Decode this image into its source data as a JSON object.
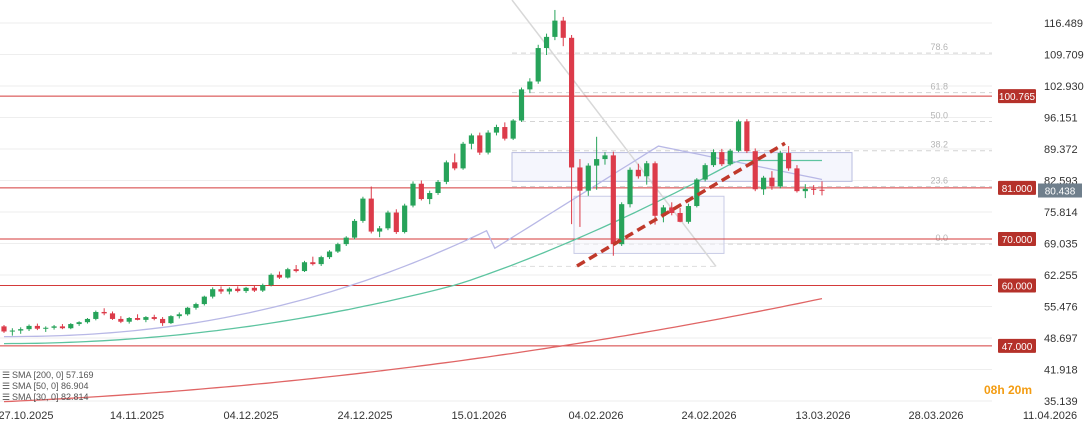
{
  "chart_data": {
    "type": "candlestick",
    "x_labels": [
      "27.10.2025",
      "14.11.2025",
      "04.12.2025",
      "24.12.2025",
      "15.01.2026",
      "04.02.2026",
      "24.02.2026",
      "13.03.2026",
      "28.03.2026",
      "11.04.2026"
    ],
    "y_labels": [
      "116.489",
      "109.709",
      "102.930",
      "96.151",
      "89.372",
      "82.593",
      "75.814",
      "69.035",
      "62.255",
      "55.476",
      "48.697",
      "41.918",
      "35.139"
    ],
    "ylim": [
      35.139,
      121.5
    ],
    "horizontal_levels": [
      100.765,
      81.0,
      70.0,
      60.0,
      47.0
    ],
    "level_tags": [
      "100.765",
      "81.000",
      "70.000",
      "60.000",
      "47.000"
    ],
    "current_price": "80.438",
    "fib_levels": [
      {
        "label": "78.6",
        "value": 110.0
      },
      {
        "label": "61.8",
        "value": 101.5
      },
      {
        "label": "50.0",
        "value": 95.3
      },
      {
        "label": "38.2",
        "value": 89.0
      },
      {
        "label": "23.6",
        "value": 81.3
      },
      {
        "label": "0.0",
        "value": 68.9
      }
    ],
    "candles": [
      [
        51.2,
        51.5,
        49.8,
        50.1
      ],
      [
        50.1,
        50.8,
        49.2,
        50.3
      ],
      [
        50.3,
        51.0,
        49.6,
        50.6
      ],
      [
        50.6,
        51.6,
        50.2,
        51.3
      ],
      [
        51.3,
        51.8,
        50.4,
        50.7
      ],
      [
        50.7,
        51.2,
        50.0,
        50.9
      ],
      [
        50.9,
        51.5,
        50.5,
        51.2
      ],
      [
        51.2,
        51.7,
        50.6,
        50.8
      ],
      [
        50.8,
        51.9,
        50.6,
        51.7
      ],
      [
        51.7,
        52.3,
        51.3,
        52.1
      ],
      [
        52.1,
        53.0,
        51.8,
        52.8
      ],
      [
        52.8,
        54.6,
        52.5,
        54.3
      ],
      [
        54.3,
        55.1,
        53.6,
        54.0
      ],
      [
        54.0,
        54.4,
        52.6,
        52.8
      ],
      [
        52.8,
        53.4,
        51.9,
        52.2
      ],
      [
        52.2,
        53.2,
        51.8,
        53.0
      ],
      [
        53.0,
        53.8,
        52.5,
        52.6
      ],
      [
        52.6,
        53.4,
        52.1,
        53.2
      ],
      [
        53.2,
        53.7,
        52.5,
        52.8
      ],
      [
        52.8,
        53.2,
        51.3,
        51.9
      ],
      [
        51.9,
        53.6,
        51.7,
        53.4
      ],
      [
        53.4,
        54.2,
        52.9,
        53.8
      ],
      [
        53.8,
        55.4,
        53.5,
        55.2
      ],
      [
        55.2,
        56.3,
        54.8,
        56.0
      ],
      [
        56.0,
        57.8,
        55.7,
        57.6
      ],
      [
        57.6,
        59.6,
        57.2,
        59.2
      ],
      [
        59.2,
        59.8,
        58.2,
        58.7
      ],
      [
        58.7,
        59.6,
        58.1,
        59.3
      ],
      [
        59.3,
        59.8,
        58.5,
        58.8
      ],
      [
        58.8,
        59.7,
        58.4,
        59.5
      ],
      [
        59.5,
        59.9,
        58.6,
        58.9
      ],
      [
        58.9,
        60.4,
        58.6,
        60.1
      ],
      [
        60.1,
        62.6,
        59.8,
        62.3
      ],
      [
        62.3,
        63.0,
        61.4,
        61.7
      ],
      [
        61.7,
        63.8,
        61.5,
        63.5
      ],
      [
        63.5,
        64.4,
        62.8,
        63.1
      ],
      [
        63.1,
        65.3,
        62.9,
        65.0
      ],
      [
        65.0,
        66.2,
        64.3,
        64.6
      ],
      [
        64.6,
        66.4,
        64.2,
        66.1
      ],
      [
        66.1,
        67.6,
        65.7,
        67.3
      ],
      [
        67.3,
        69.2,
        67.0,
        68.9
      ],
      [
        68.9,
        70.6,
        68.5,
        70.3
      ],
      [
        70.3,
        74.3,
        69.9,
        73.9
      ],
      [
        73.9,
        79.1,
        73.5,
        78.7
      ],
      [
        78.7,
        81.3,
        71.2,
        71.6
      ],
      [
        71.6,
        72.8,
        70.4,
        72.3
      ],
      [
        72.3,
        76.1,
        71.9,
        75.7
      ],
      [
        75.7,
        76.4,
        71.1,
        71.5
      ],
      [
        71.5,
        77.6,
        71.2,
        77.2
      ],
      [
        77.2,
        82.4,
        76.8,
        81.9
      ],
      [
        81.9,
        82.6,
        78.3,
        78.6
      ],
      [
        78.6,
        80.4,
        77.5,
        79.9
      ],
      [
        79.9,
        82.7,
        79.5,
        82.3
      ],
      [
        82.3,
        86.9,
        81.8,
        86.5
      ],
      [
        86.5,
        88.4,
        84.8,
        85.2
      ],
      [
        85.2,
        90.9,
        84.9,
        90.5
      ],
      [
        90.5,
        92.7,
        89.3,
        92.3
      ],
      [
        92.3,
        92.9,
        88.1,
        88.6
      ],
      [
        88.6,
        93.4,
        88.2,
        92.9
      ],
      [
        92.9,
        94.6,
        92.3,
        94.1
      ],
      [
        94.1,
        95.1,
        91.2,
        91.6
      ],
      [
        91.6,
        95.8,
        91.3,
        95.5
      ],
      [
        95.5,
        102.6,
        95.2,
        102.2
      ],
      [
        102.2,
        104.6,
        101.4,
        103.9
      ],
      [
        103.9,
        111.8,
        103.4,
        111.1
      ],
      [
        111.1,
        114.2,
        109.6,
        113.5
      ],
      [
        113.5,
        119.3,
        112.8,
        117.0
      ],
      [
        117.0,
        117.8,
        111.5,
        113.3
      ],
      [
        113.3,
        113.9,
        73.2,
        85.4
      ],
      [
        85.4,
        87.2,
        72.6,
        80.4
      ],
      [
        80.4,
        86.3,
        79.3,
        85.8
      ],
      [
        85.8,
        92.0,
        80.6,
        87.2
      ],
      [
        87.2,
        88.7,
        86.0,
        88.0
      ],
      [
        88.0,
        88.8,
        66.4,
        68.9
      ],
      [
        68.9,
        77.9,
        68.5,
        77.5
      ],
      [
        77.5,
        85.4,
        76.8,
        84.9
      ],
      [
        84.9,
        86.2,
        83.0,
        83.5
      ],
      [
        83.5,
        86.8,
        81.7,
        86.3
      ],
      [
        86.3,
        86.7,
        73.1,
        75.0
      ],
      [
        75.0,
        77.3,
        73.6,
        76.8
      ],
      [
        76.8,
        77.9,
        75.1,
        75.6
      ],
      [
        75.6,
        76.7,
        73.6,
        73.7
      ],
      [
        73.7,
        77.6,
        73.3,
        77.1
      ],
      [
        77.1,
        83.1,
        76.8,
        82.8
      ],
      [
        82.8,
        86.3,
        82.4,
        85.9
      ],
      [
        85.9,
        89.3,
        85.5,
        88.7
      ],
      [
        88.7,
        89.4,
        85.7,
        86.1
      ],
      [
        86.1,
        89.4,
        85.8,
        89.0
      ],
      [
        89.0,
        95.7,
        88.7,
        95.3
      ],
      [
        95.3,
        95.8,
        88.5,
        88.9
      ],
      [
        88.9,
        89.5,
        80.3,
        80.7
      ],
      [
        80.7,
        83.6,
        79.5,
        83.2
      ],
      [
        83.2,
        84.6,
        80.6,
        81.3
      ],
      [
        81.3,
        89.0,
        80.9,
        88.5
      ],
      [
        88.5,
        90.0,
        84.7,
        85.2
      ],
      [
        85.2,
        85.9,
        80.0,
        80.3
      ],
      [
        80.3,
        81.8,
        78.8,
        80.8
      ],
      [
        80.8,
        81.6,
        79.5,
        80.6
      ],
      [
        80.6,
        82.4,
        79.4,
        80.4
      ]
    ],
    "series": [
      {
        "name": "SMA [200, 0] 57.169",
        "values": [
          35.0,
          57.169
        ]
      },
      {
        "name": "SMA [50, 0] 86.904",
        "values": [
          47.5,
          86.904
        ]
      },
      {
        "name": "SMA [30, 0] 82.814",
        "values": [
          49.0,
          82.814
        ]
      }
    ],
    "timer_label": "08h 20m",
    "colors": {
      "up": "#27a35a",
      "down": "#dc3b4a",
      "level": "#d43a3a",
      "sma200": "#e06565",
      "sma50": "#5dc4a0",
      "sma30": "#b8b8e6",
      "trend": "#c0392b",
      "timer": "#f39c12"
    }
  }
}
